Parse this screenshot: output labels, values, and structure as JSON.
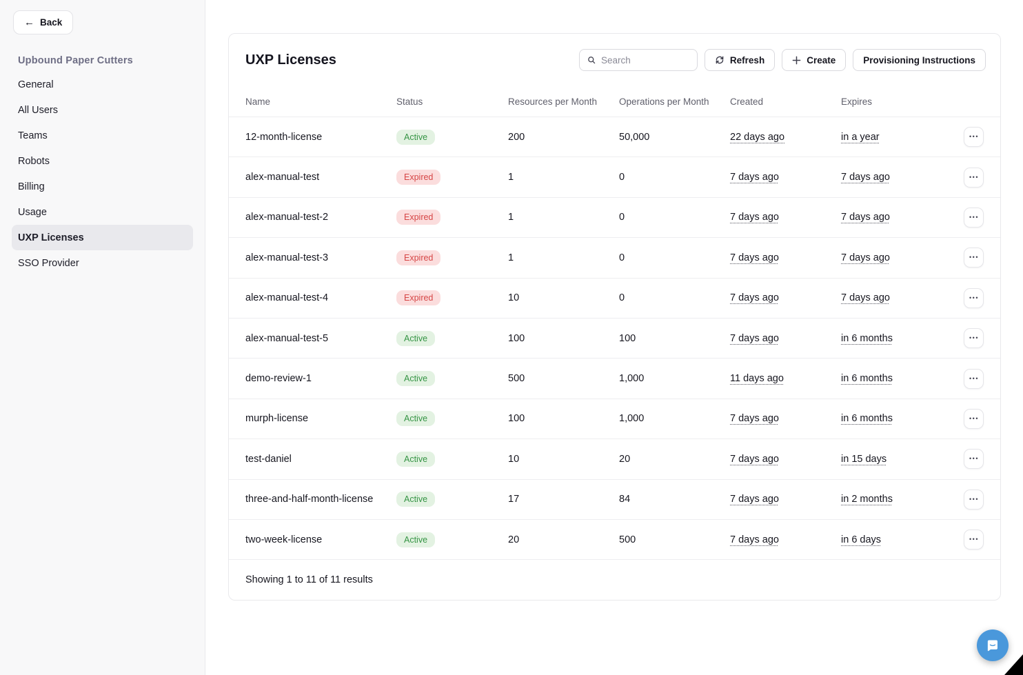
{
  "sidebar": {
    "back_label": "Back",
    "org_title": "Upbound Paper Cutters",
    "items": [
      {
        "label": "General",
        "active": false
      },
      {
        "label": "All Users",
        "active": false
      },
      {
        "label": "Teams",
        "active": false
      },
      {
        "label": "Robots",
        "active": false
      },
      {
        "label": "Billing",
        "active": false
      },
      {
        "label": "Usage",
        "active": false
      },
      {
        "label": "UXP Licenses",
        "active": true
      },
      {
        "label": "SSO Provider",
        "active": false
      }
    ]
  },
  "header": {
    "title": "UXP Licenses",
    "search_placeholder": "Search",
    "refresh_label": "Refresh",
    "create_label": "Create",
    "provisioning_label": "Provisioning Instructions"
  },
  "table": {
    "columns": [
      "Name",
      "Status",
      "Resources per Month",
      "Operations per Month",
      "Created",
      "Expires"
    ],
    "rows": [
      {
        "name": "12-month-license",
        "status": "Active",
        "resources": "200",
        "operations": "50,000",
        "created": "22 days ago",
        "expires": "in a year"
      },
      {
        "name": "alex-manual-test",
        "status": "Expired",
        "resources": "1",
        "operations": "0",
        "created": "7 days ago",
        "expires": "7 days ago"
      },
      {
        "name": "alex-manual-test-2",
        "status": "Expired",
        "resources": "1",
        "operations": "0",
        "created": "7 days ago",
        "expires": "7 days ago"
      },
      {
        "name": "alex-manual-test-3",
        "status": "Expired",
        "resources": "1",
        "operations": "0",
        "created": "7 days ago",
        "expires": "7 days ago"
      },
      {
        "name": "alex-manual-test-4",
        "status": "Expired",
        "resources": "10",
        "operations": "0",
        "created": "7 days ago",
        "expires": "7 days ago"
      },
      {
        "name": "alex-manual-test-5",
        "status": "Active",
        "resources": "100",
        "operations": "100",
        "created": "7 days ago",
        "expires": "in 6 months"
      },
      {
        "name": "demo-review-1",
        "status": "Active",
        "resources": "500",
        "operations": "1,000",
        "created": "11 days ago",
        "expires": "in 6 months"
      },
      {
        "name": "murph-license",
        "status": "Active",
        "resources": "100",
        "operations": "1,000",
        "created": "7 days ago",
        "expires": "in 6 months"
      },
      {
        "name": "test-daniel",
        "status": "Active",
        "resources": "10",
        "operations": "20",
        "created": "7 days ago",
        "expires": "in 15 days"
      },
      {
        "name": "three-and-half-month-license",
        "status": "Active",
        "resources": "17",
        "operations": "84",
        "created": "7 days ago",
        "expires": "in 2 months"
      },
      {
        "name": "two-week-license",
        "status": "Active",
        "resources": "20",
        "operations": "500",
        "created": "7 days ago",
        "expires": "in 6 days"
      }
    ],
    "footer_text": "Showing 1 to 11 of 11 results"
  },
  "icons": {
    "back": "arrow-left-icon",
    "search": "magnifier-icon",
    "refresh": "refresh-icon",
    "create": "plus-icon",
    "row_actions": "ellipsis-icon",
    "chat": "chat-bubble-icon",
    "back_glyph": "←",
    "ellipsis_glyph": "•••"
  },
  "colors": {
    "active_bg": "#e3f2e2",
    "active_text": "#359444",
    "expired_bg": "#fbdddd",
    "expired_text": "#d64545",
    "chat_blue": "#4a98db",
    "sidebar_bg": "#f8f8f9",
    "org_title_text": "#6e6e85"
  }
}
